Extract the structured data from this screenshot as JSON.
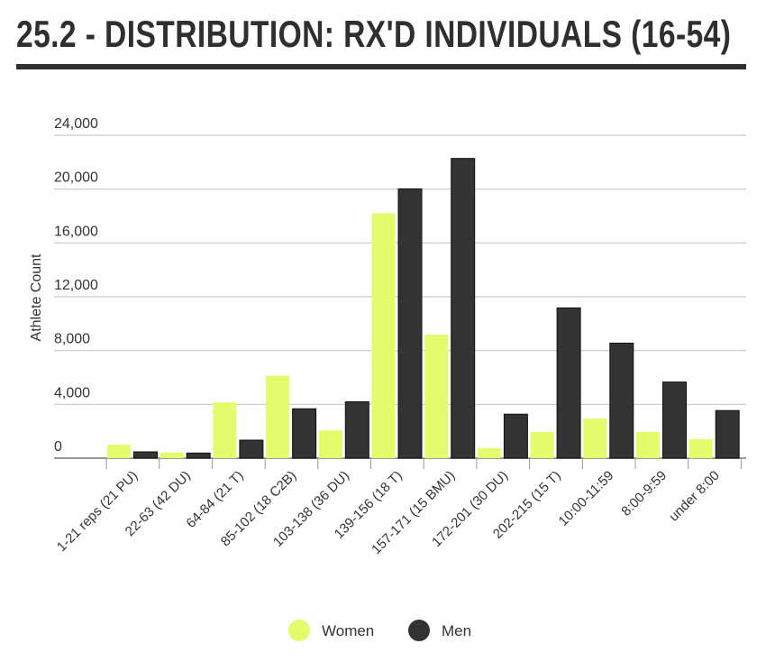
{
  "title": "25.2 - DISTRIBUTION: RX'D INDIVIDUALS (16-54)",
  "chart_data": {
    "type": "bar",
    "title": "25.2 - DISTRIBUTION: RX'D INDIVIDUALS (16-54)",
    "xlabel": "",
    "ylabel": "Athlete Count",
    "ylim": [
      0,
      24000
    ],
    "yticks": [
      0,
      4000,
      8000,
      12000,
      16000,
      20000,
      24000
    ],
    "ytick_labels": [
      "0",
      "4,000",
      "8,000",
      "12,000",
      "16,000",
      "20,000",
      "24,000"
    ],
    "grid": true,
    "legend": "bottom",
    "categories": [
      "1-21 reps (21 PU)",
      "22-63 (42 DU)",
      "64-84 (21 T)",
      "85-102 (18 C2B)",
      "103-138 (36 DU)",
      "139-156 (18 T)",
      "157-171 (15 BMU)",
      "172-201 (30 DU)",
      "202-215 (15 T)",
      "10:00-11:59",
      "8:00-9:59",
      "under 8:00"
    ],
    "series": [
      {
        "name": "Women",
        "color": "#e4fb6c",
        "values": [
          1000,
          420,
          4150,
          6130,
          2060,
          18200,
          9180,
          760,
          1950,
          2950,
          1950,
          1410
        ]
      },
      {
        "name": "Men",
        "color": "#333333",
        "values": [
          470,
          380,
          1340,
          3670,
          4190,
          20020,
          22280,
          3270,
          11170,
          8550,
          5660,
          3540
        ]
      }
    ]
  }
}
